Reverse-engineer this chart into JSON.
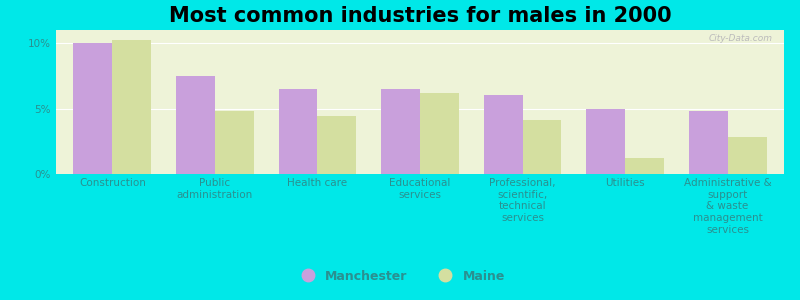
{
  "title": "Most common industries for males in 2000",
  "categories": [
    "Construction",
    "Public\nadministration",
    "Health care",
    "Educational\nservices",
    "Professional,\nscientific,\ntechnical\nservices",
    "Utilities",
    "Administrative &\nsupport\n& waste\nmanagement\nservices"
  ],
  "manchester_values": [
    10.0,
    7.5,
    6.5,
    6.5,
    6.0,
    5.0,
    4.8
  ],
  "maine_values": [
    10.2,
    4.8,
    4.4,
    6.2,
    4.1,
    1.2,
    2.8
  ],
  "manchester_color": "#c9a0dc",
  "maine_color": "#d4dfa0",
  "background_color": "#00e8e8",
  "plot_bg_color": "#eef3d8",
  "ylim": [
    0,
    11
  ],
  "yticks": [
    0,
    5,
    10
  ],
  "ytick_labels": [
    "0%",
    "5%",
    "10%"
  ],
  "bar_width": 0.38,
  "legend_manchester": "Manchester",
  "legend_maine": "Maine",
  "title_fontsize": 15,
  "tick_fontsize": 7.5,
  "legend_fontsize": 9,
  "label_color": "#2a9090"
}
